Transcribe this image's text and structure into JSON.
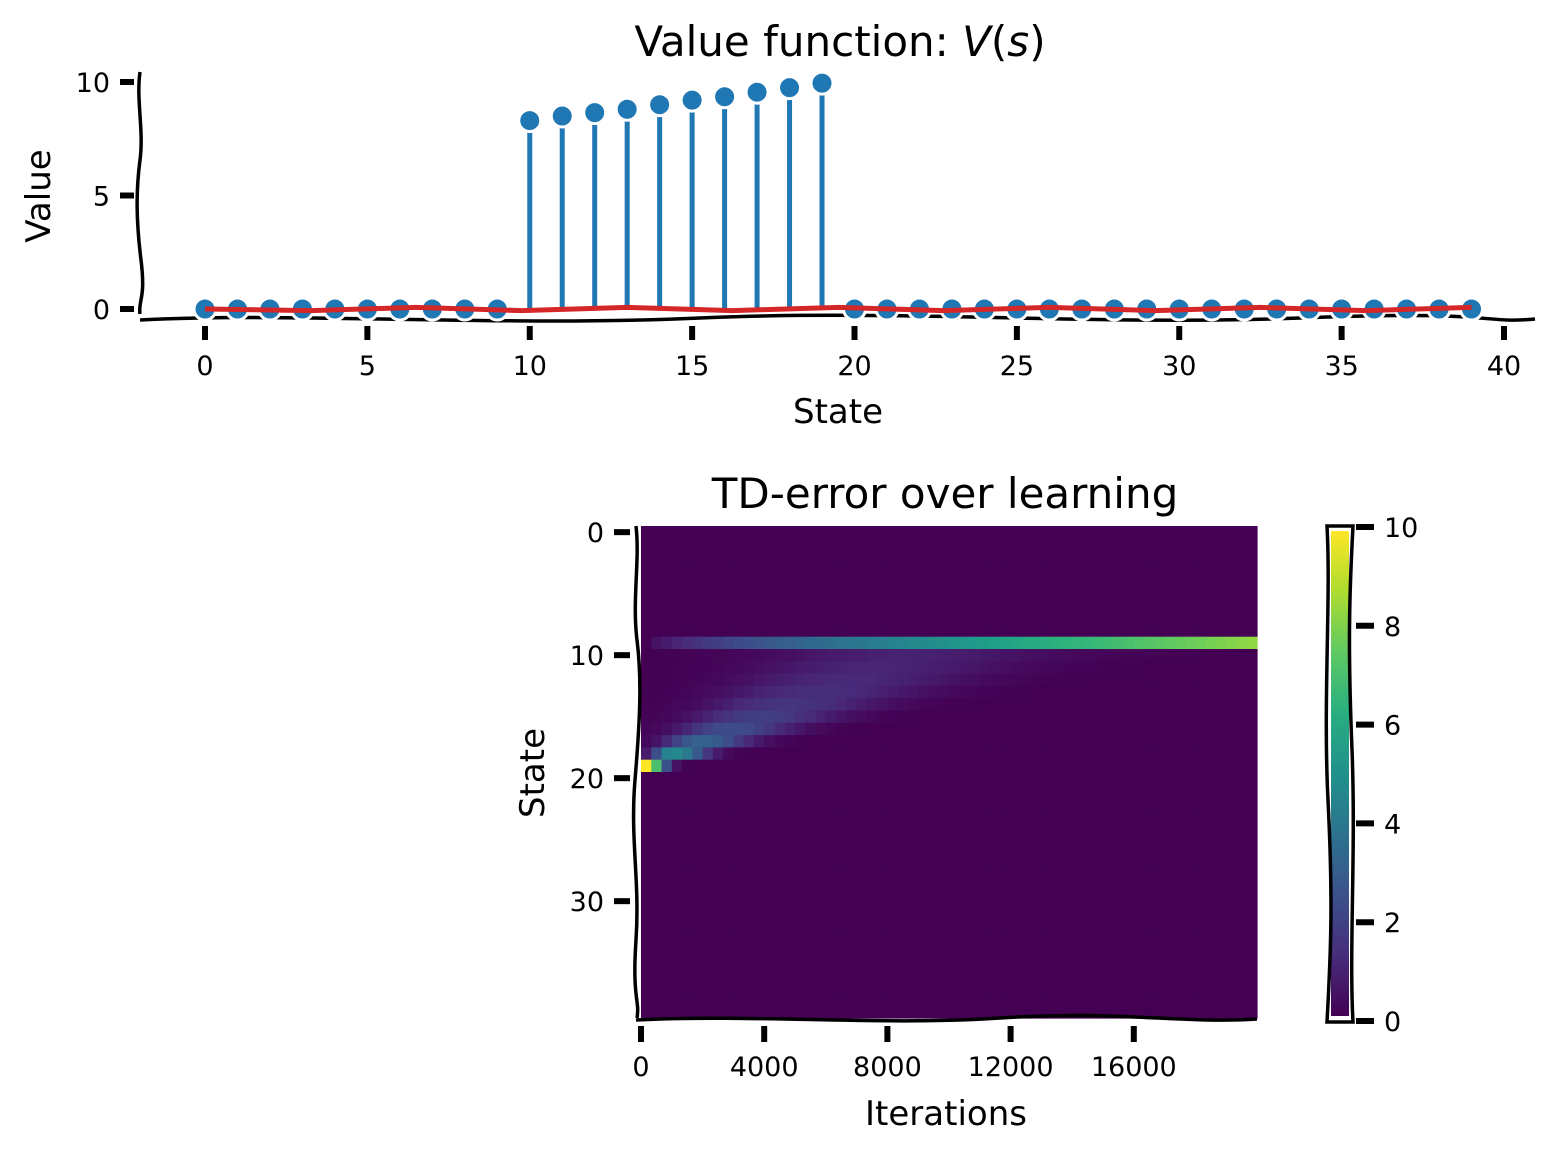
{
  "chart_data": [
    {
      "type": "stem",
      "title_prefix": "Value function: ",
      "title_math": "V",
      "title_paren_open": "(",
      "title_math_arg": "s",
      "title_paren_close": ")",
      "xlabel": "State",
      "ylabel": "Value",
      "xlim": [
        -2,
        41
      ],
      "ylim": [
        -0.5,
        10.5
      ],
      "xticks": [
        0,
        5,
        10,
        15,
        20,
        25,
        30,
        35,
        40
      ],
      "yticks": [
        0,
        5,
        10
      ],
      "series": [
        {
          "name": "V(s)",
          "color": "#1f77b4",
          "x": [
            0,
            1,
            2,
            3,
            4,
            5,
            6,
            7,
            8,
            9,
            10,
            11,
            12,
            13,
            14,
            15,
            16,
            17,
            18,
            19,
            20,
            21,
            22,
            23,
            24,
            25,
            26,
            27,
            28,
            29,
            30,
            31,
            32,
            33,
            34,
            35,
            36,
            37,
            38,
            39
          ],
          "values": [
            0,
            0,
            0,
            0,
            0,
            0,
            0,
            0,
            0,
            0,
            8.3,
            8.5,
            8.65,
            8.8,
            9.0,
            9.2,
            9.35,
            9.55,
            9.75,
            9.95,
            0,
            0,
            0,
            0,
            0,
            0,
            0,
            0,
            0,
            0,
            0,
            0,
            0,
            0,
            0,
            0,
            0,
            0,
            0,
            0
          ]
        },
        {
          "name": "baseline",
          "color": "#d62728",
          "x": [
            0,
            39
          ],
          "values": [
            0,
            0
          ]
        }
      ]
    },
    {
      "type": "heatmap",
      "title": "TD-error over learning",
      "xlabel": "Iterations",
      "ylabel": "State",
      "colormap": "viridis",
      "states": 40,
      "iterations_max": 20000,
      "n_columns": 60,
      "xticks": [
        0,
        4000,
        8000,
        12000,
        16000
      ],
      "yticks": [
        0,
        10,
        20,
        30
      ],
      "colorbar": {
        "min": 0,
        "max": 10,
        "ticks": [
          0,
          2,
          4,
          6,
          8,
          10
        ]
      },
      "description": "TD error starts at ~10 at state 19 for iteration 0, spreads diagonally to earlier states (19 down to 9) as learning proceeds, and concentrates at state 9 with value rising to ~8.3 by 20000 iterations."
    }
  ]
}
